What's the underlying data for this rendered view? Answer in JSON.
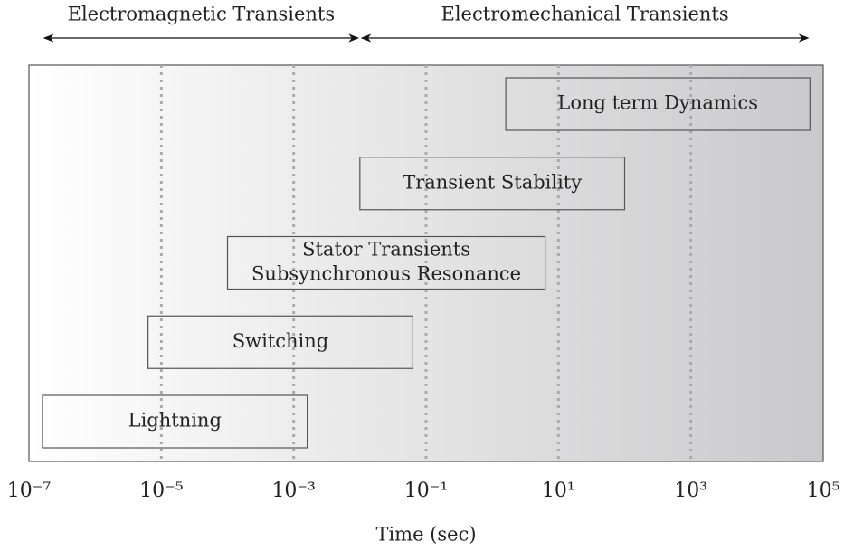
{
  "chart_data": {
    "type": "range",
    "xlabel": "Time (sec)",
    "xscale": "log",
    "xlim": [
      1e-07,
      100000.0
    ],
    "xticks": [
      {
        "value": 1e-07,
        "label": "10⁻⁷"
      },
      {
        "value": 1e-05,
        "label": "10⁻⁵"
      },
      {
        "value": 0.001,
        "label": "10⁻³"
      },
      {
        "value": 0.1,
        "label": "10⁻¹"
      },
      {
        "value": 10,
        "label": "10¹"
      },
      {
        "value": 1000,
        "label": "10³"
      },
      {
        "value": 100000.0,
        "label": "10⁵"
      }
    ],
    "grid": true,
    "regions": [
      {
        "name": "Electromagnetic Transients",
        "start": 1.6e-07,
        "end": 0.01
      },
      {
        "name": "Electromechanical Transients",
        "start": 0.01,
        "end": 63000
      }
    ],
    "bars": [
      {
        "label": [
          "Long term Dynamics"
        ],
        "start": 1.6,
        "end": 63000
      },
      {
        "label": [
          "Transient Stability"
        ],
        "start": 0.01,
        "end": 100
      },
      {
        "label": [
          "Stator Transients",
          "Subsynchronous Resonance"
        ],
        "start": 0.0001,
        "end": 6.3
      },
      {
        "label": [
          "Switching"
        ],
        "start": 6.3e-06,
        "end": 0.063
      },
      {
        "label": [
          "Lightning"
        ],
        "start": 1.6e-07,
        "end": 0.0016
      }
    ]
  }
}
